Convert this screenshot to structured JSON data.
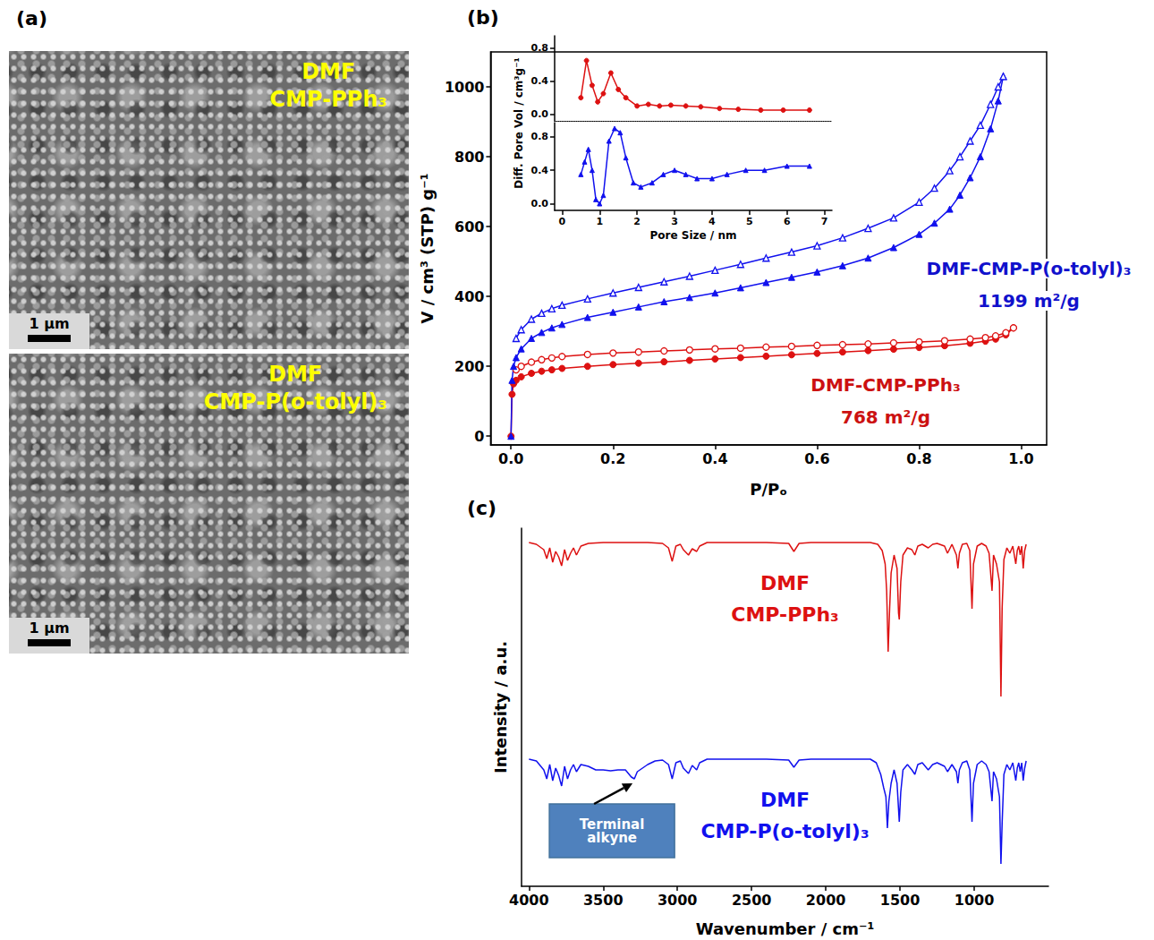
{
  "chart_data": [
    {
      "type": "image",
      "panel": "(a)",
      "images": [
        {
          "title": [
            "DMF",
            "CMP-PPh₃"
          ],
          "scale_bar": "1 µm"
        },
        {
          "title": [
            "DMF",
            "CMP-P(o-tolyl)₃"
          ],
          "scale_bar": "1 µm"
        }
      ]
    },
    {
      "type": "line",
      "panel": "(b)",
      "xlabel": "P/Pₒ",
      "ylabel": "V / cm³ (STP) g⁻¹",
      "xlim": [
        -0.04,
        1.05
      ],
      "xticks": [
        {
          "value": 0,
          "label": "0.0"
        },
        {
          "value": 0.2,
          "label": "0.2"
        },
        {
          "value": 0.4,
          "label": "0.4"
        },
        {
          "value": 0.6,
          "label": "0.6"
        },
        {
          "value": 0.8,
          "label": "0.8"
        },
        {
          "value": 1,
          "label": "1.0"
        }
      ],
      "ylim": [
        -25,
        1100
      ],
      "yticks": [
        0,
        200,
        400,
        600,
        800,
        1000
      ],
      "grid": false,
      "series": [
        {
          "color": "#dd1111",
          "marker": "circle",
          "x": [
            0,
            0.002,
            0.005,
            0.01,
            0.02,
            0.04,
            0.06,
            0.08,
            0.1,
            0.15,
            0.2,
            0.25,
            0.3,
            0.35,
            0.4,
            0.45,
            0.5,
            0.55,
            0.6,
            0.65,
            0.7,
            0.75,
            0.8,
            0.85,
            0.9,
            0.93,
            0.95,
            0.97,
            0.985
          ],
          "values": [
            0,
            120,
            150,
            160,
            170,
            180,
            186,
            190,
            194,
            200,
            205,
            209,
            213,
            217,
            221,
            225,
            229,
            233,
            237,
            241,
            245,
            249,
            254,
            259,
            266,
            272,
            278,
            290,
            310
          ]
        },
        {
          "color": "#dd1111",
          "marker": "open-circle",
          "x": [
            0.985,
            0.97,
            0.95,
            0.93,
            0.9,
            0.85,
            0.8,
            0.75,
            0.7,
            0.65,
            0.6,
            0.55,
            0.5,
            0.45,
            0.4,
            0.35,
            0.3,
            0.25,
            0.2,
            0.15,
            0.1,
            0.08,
            0.06,
            0.04,
            0.02,
            0.01
          ],
          "values": [
            310,
            296,
            287,
            282,
            278,
            273,
            270,
            267,
            264,
            262,
            260,
            257,
            255,
            252,
            250,
            247,
            244,
            241,
            238,
            234,
            228,
            224,
            219,
            212,
            200,
            190
          ]
        },
        {
          "color": "#1111ee",
          "marker": "triangle",
          "x": [
            0,
            0.002,
            0.005,
            0.01,
            0.02,
            0.04,
            0.06,
            0.08,
            0.1,
            0.15,
            0.2,
            0.25,
            0.3,
            0.35,
            0.4,
            0.45,
            0.5,
            0.55,
            0.6,
            0.65,
            0.7,
            0.75,
            0.8,
            0.83,
            0.86,
            0.88,
            0.9,
            0.92,
            0.94,
            0.955,
            0.965
          ],
          "values": [
            0,
            160,
            200,
            225,
            250,
            280,
            297,
            310,
            320,
            340,
            355,
            370,
            385,
            397,
            410,
            425,
            440,
            455,
            470,
            488,
            510,
            540,
            578,
            610,
            650,
            690,
            740,
            800,
            880,
            960,
            1030
          ]
        },
        {
          "color": "#1111ee",
          "marker": "open-triangle",
          "x": [
            0.965,
            0.955,
            0.94,
            0.92,
            0.9,
            0.88,
            0.86,
            0.83,
            0.8,
            0.75,
            0.7,
            0.65,
            0.6,
            0.55,
            0.5,
            0.45,
            0.4,
            0.35,
            0.3,
            0.25,
            0.2,
            0.15,
            0.1,
            0.08,
            0.06,
            0.04,
            0.02,
            0.01
          ],
          "values": [
            1030,
            1000,
            950,
            890,
            845,
            800,
            760,
            710,
            670,
            625,
            595,
            568,
            545,
            527,
            510,
            492,
            475,
            458,
            442,
            426,
            410,
            393,
            375,
            365,
            352,
            335,
            305,
            280
          ]
        }
      ],
      "annotations": [
        {
          "text": [
            "DMF-CMP-P(o-tolyl)₃",
            "1199 m²/g"
          ],
          "color": "#1111cc"
        },
        {
          "text": [
            "DMF-CMP-PPh₃",
            "768 m²/g"
          ],
          "color": "#cc1111"
        }
      ],
      "inset": {
        "type": "line",
        "xlabel": "Pore Size / nm",
        "ylabel": "Diff. Pore Vol / cm³g⁻¹",
        "xlim": [
          -0.2,
          7.2
        ],
        "xticks": [
          0,
          1,
          2,
          3,
          4,
          5,
          6,
          7
        ],
        "panels": [
          {
            "ylim": [
              -0.08,
              0.95
            ],
            "tick_labels": "y",
            "yticks": [
              {
                "value": 0,
                "label": "0.0"
              },
              {
                "value": 0.4,
                "label": "0.4"
              },
              {
                "value": 0.8,
                "label": "0.8"
              }
            ],
            "series": [
              {
                "color": "#dd1111",
                "marker": "circle",
                "x": [
                  0.5,
                  0.65,
                  0.8,
                  0.95,
                  1.1,
                  1.3,
                  1.5,
                  1.7,
                  2.0,
                  2.3,
                  2.6,
                  2.9,
                  3.3,
                  3.7,
                  4.2,
                  4.7,
                  5.3,
                  5.9,
                  6.6
                ],
                "values": [
                  0.2,
                  0.65,
                  0.35,
                  0.15,
                  0.25,
                  0.5,
                  0.3,
                  0.2,
                  0.1,
                  0.12,
                  0.1,
                  0.11,
                  0.1,
                  0.09,
                  0.07,
                  0.06,
                  0.05,
                  0.05,
                  0.05
                ]
              }
            ]
          },
          {
            "ylim": [
              -0.08,
              0.97
            ],
            "yticks": [
              {
                "value": 0,
                "label": "0.0"
              },
              {
                "value": 0.4,
                "label": "0.4"
              },
              {
                "value": 0.8,
                "label": "0.8"
              }
            ],
            "series": [
              {
                "color": "#1111ee",
                "marker": "triangle",
                "x": [
                  0.5,
                  0.6,
                  0.7,
                  0.8,
                  0.9,
                  1.0,
                  1.1,
                  1.25,
                  1.4,
                  1.55,
                  1.7,
                  1.9,
                  2.1,
                  2.4,
                  2.7,
                  3.0,
                  3.3,
                  3.6,
                  4.0,
                  4.4,
                  4.9,
                  5.4,
                  6.0,
                  6.6
                ],
                "values": [
                  0.35,
                  0.5,
                  0.65,
                  0.4,
                  0.05,
                  0.0,
                  0.1,
                  0.75,
                  0.9,
                  0.85,
                  0.55,
                  0.25,
                  0.2,
                  0.25,
                  0.35,
                  0.4,
                  0.35,
                  0.3,
                  0.3,
                  0.35,
                  0.4,
                  0.4,
                  0.45,
                  0.45
                ]
              }
            ]
          }
        ]
      }
    },
    {
      "type": "line",
      "panel": "(c)",
      "xlabel": "Wavenumber / cm⁻¹",
      "ylabel": "Intensity / a.u.",
      "xlim": [
        4050,
        500
      ],
      "xticks": [
        4000,
        3500,
        3000,
        2500,
        2000,
        1500,
        1000
      ],
      "ylim": [
        0,
        4.0
      ],
      "tick_labels": "x",
      "grid": false,
      "series": [
        {
          "color": "#dd1111",
          "label": [
            "DMF",
            "CMP-PPh₃"
          ],
          "x": [
            4000,
            3950,
            3900,
            3880,
            3860,
            3840,
            3820,
            3800,
            3780,
            3760,
            3740,
            3720,
            3700,
            3680,
            3650,
            3600,
            3500,
            3400,
            3300,
            3200,
            3100,
            3060,
            3035,
            3010,
            2980,
            2960,
            2925,
            2900,
            2870,
            2850,
            2800,
            2600,
            2400,
            2250,
            2215,
            2180,
            2100,
            2000,
            1900,
            1800,
            1700,
            1650,
            1620,
            1600,
            1590,
            1580,
            1570,
            1560,
            1540,
            1520,
            1510,
            1505,
            1495,
            1480,
            1450,
            1420,
            1400,
            1380,
            1350,
            1310,
            1280,
            1250,
            1200,
            1180,
            1150,
            1120,
            1110,
            1100,
            1080,
            1050,
            1030,
            1015,
            1005,
            980,
            950,
            920,
            900,
            880,
            870,
            850,
            830,
            820,
            812,
            800,
            780,
            760,
            740,
            720,
            710,
            700,
            690,
            680,
            670,
            660,
            650
          ],
          "values": [
            3.84,
            3.82,
            3.76,
            3.66,
            3.78,
            3.62,
            3.74,
            3.68,
            3.58,
            3.76,
            3.64,
            3.72,
            3.78,
            3.7,
            3.8,
            3.83,
            3.84,
            3.84,
            3.84,
            3.84,
            3.83,
            3.78,
            3.63,
            3.8,
            3.82,
            3.76,
            3.7,
            3.77,
            3.74,
            3.8,
            3.84,
            3.84,
            3.84,
            3.83,
            3.74,
            3.83,
            3.84,
            3.84,
            3.84,
            3.84,
            3.84,
            3.82,
            3.75,
            3.6,
            3.3,
            2.62,
            3.1,
            3.5,
            3.7,
            3.55,
            3.05,
            2.98,
            3.4,
            3.7,
            3.78,
            3.76,
            3.7,
            3.8,
            3.82,
            3.78,
            3.82,
            3.83,
            3.8,
            3.72,
            3.82,
            3.7,
            3.55,
            3.72,
            3.82,
            3.83,
            3.75,
            3.1,
            3.6,
            3.8,
            3.83,
            3.8,
            3.72,
            3.3,
            3.7,
            3.6,
            3.4,
            2.12,
            3.1,
            3.65,
            3.78,
            3.72,
            3.8,
            3.6,
            3.75,
            3.8,
            3.7,
            3.8,
            3.55,
            3.75,
            3.82
          ]
        },
        {
          "color": "#1111ee",
          "label": [
            "DMF",
            "CMP-P(o-tolyl)₃"
          ],
          "x": [
            4000,
            3950,
            3900,
            3880,
            3860,
            3840,
            3820,
            3800,
            3780,
            3760,
            3740,
            3720,
            3700,
            3680,
            3650,
            3600,
            3550,
            3500,
            3450,
            3400,
            3350,
            3310,
            3290,
            3270,
            3200,
            3150,
            3100,
            3060,
            3035,
            3010,
            2980,
            2960,
            2925,
            2900,
            2870,
            2850,
            2800,
            2600,
            2400,
            2250,
            2215,
            2180,
            2100,
            2000,
            1800,
            1700,
            1660,
            1630,
            1610,
            1595,
            1585,
            1575,
            1560,
            1540,
            1520,
            1505,
            1495,
            1480,
            1450,
            1420,
            1400,
            1380,
            1350,
            1310,
            1280,
            1250,
            1200,
            1180,
            1150,
            1120,
            1110,
            1100,
            1080,
            1050,
            1030,
            1015,
            1005,
            980,
            950,
            920,
            900,
            880,
            870,
            850,
            830,
            820,
            812,
            800,
            780,
            760,
            740,
            720,
            710,
            700,
            690,
            680,
            670,
            660,
            650
          ],
          "values": [
            1.42,
            1.4,
            1.3,
            1.2,
            1.36,
            1.18,
            1.32,
            1.24,
            1.12,
            1.34,
            1.2,
            1.3,
            1.36,
            1.28,
            1.36,
            1.34,
            1.3,
            1.3,
            1.29,
            1.3,
            1.3,
            1.22,
            1.2,
            1.28,
            1.36,
            1.4,
            1.41,
            1.36,
            1.2,
            1.38,
            1.4,
            1.32,
            1.26,
            1.35,
            1.3,
            1.38,
            1.42,
            1.42,
            1.42,
            1.41,
            1.33,
            1.41,
            1.42,
            1.42,
            1.42,
            1.42,
            1.38,
            1.25,
            1.1,
            1.0,
            0.65,
            0.95,
            1.15,
            1.3,
            1.15,
            0.72,
            1.05,
            1.3,
            1.36,
            1.3,
            1.25,
            1.36,
            1.38,
            1.3,
            1.36,
            1.38,
            1.34,
            1.28,
            1.36,
            1.28,
            1.15,
            1.3,
            1.38,
            1.4,
            1.3,
            0.72,
            1.15,
            1.36,
            1.4,
            1.36,
            1.28,
            0.95,
            1.28,
            1.2,
            1.0,
            0.25,
            0.7,
            1.25,
            1.36,
            1.3,
            1.38,
            1.18,
            1.32,
            1.38,
            1.28,
            1.38,
            1.18,
            1.32,
            1.4
          ]
        }
      ],
      "annotations": [
        {
          "text": "Terminal alkyne",
          "x": 3290,
          "y": 1.2
        }
      ]
    }
  ]
}
